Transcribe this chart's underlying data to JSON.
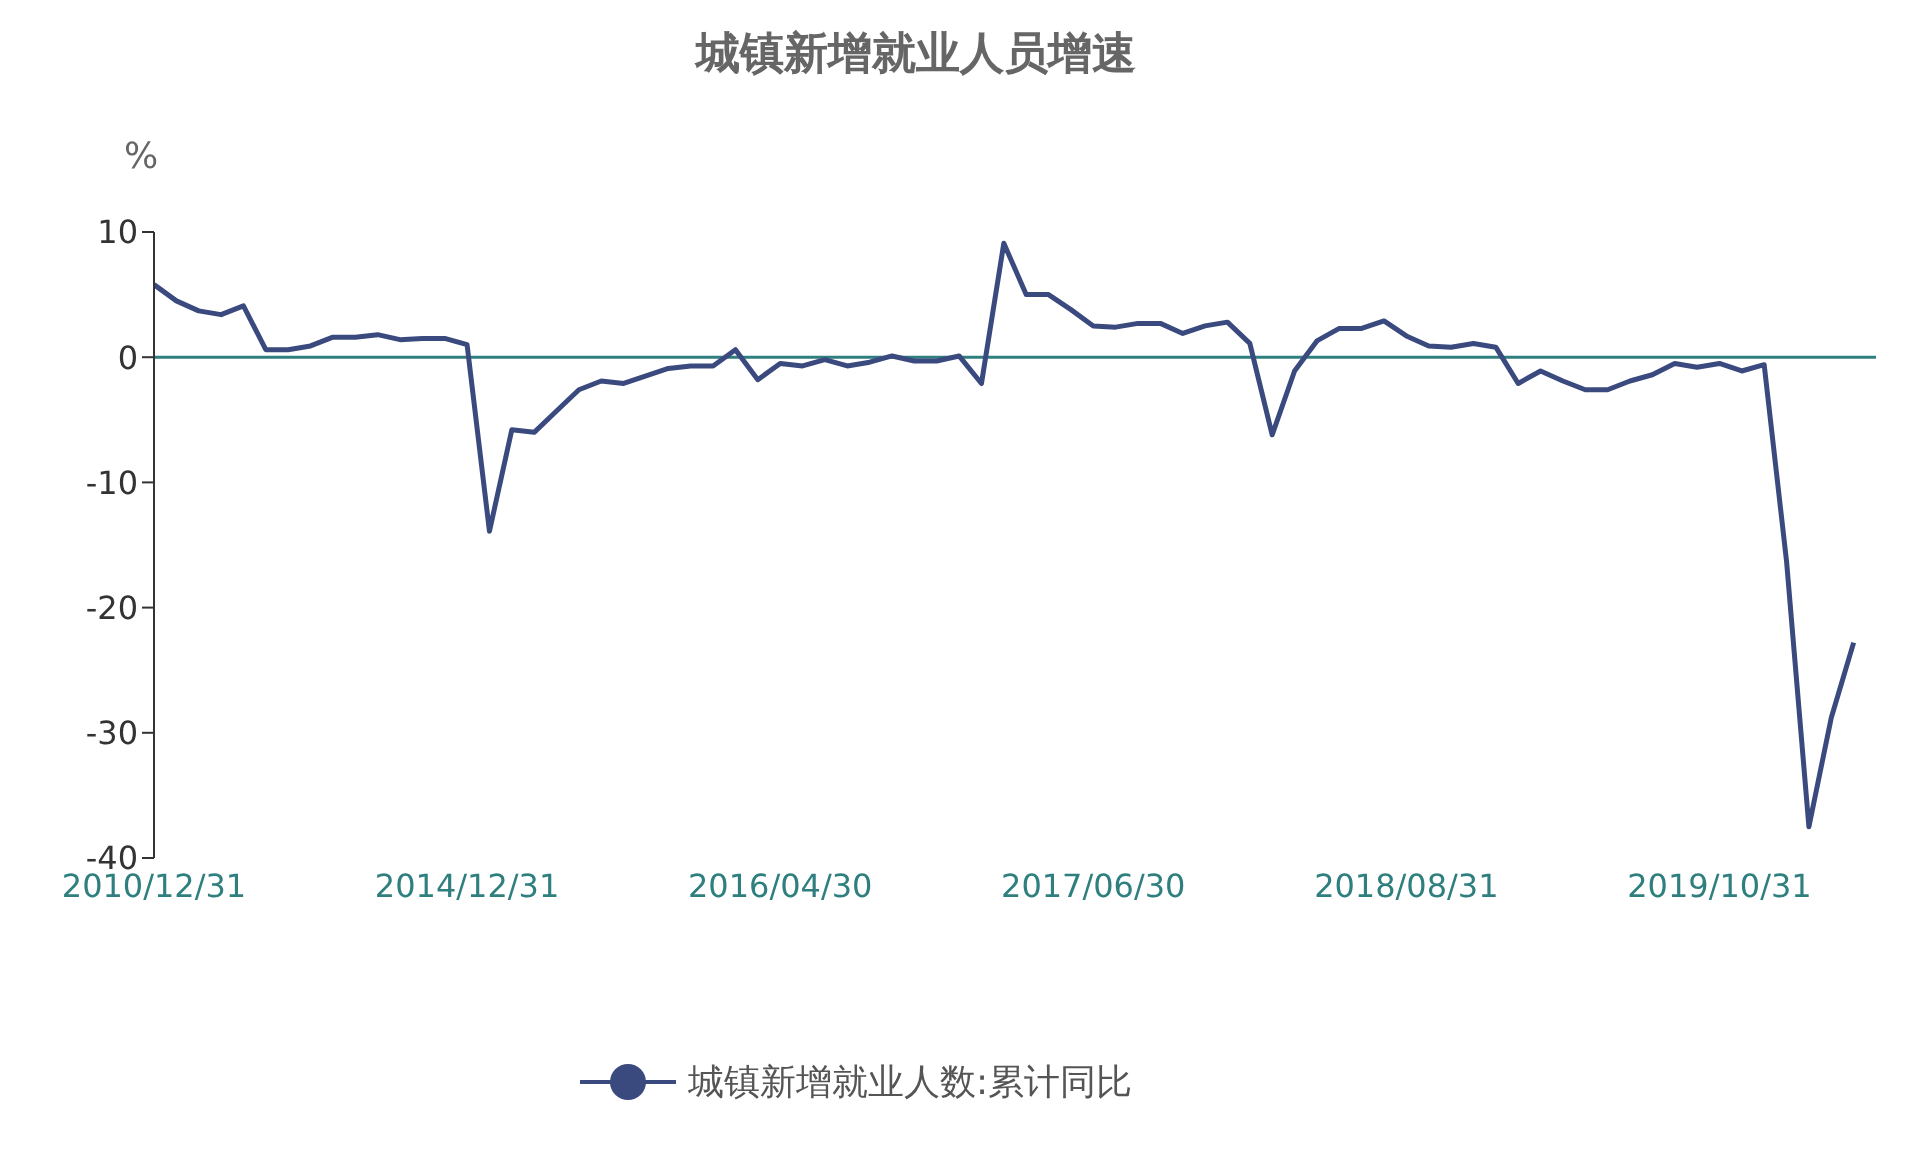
{
  "chart_data": {
    "type": "line",
    "title": "城镇新增就业人员增速",
    "ylabel": "%",
    "categories": [
      "2010/12/31",
      null,
      null,
      null,
      null,
      null,
      null,
      null,
      null,
      null,
      null,
      null,
      null,
      null,
      "2014/12/31",
      null,
      null,
      null,
      null,
      null,
      null,
      null,
      null,
      null,
      null,
      null,
      null,
      null,
      "2016/04/30",
      null,
      null,
      null,
      null,
      null,
      null,
      null,
      null,
      null,
      null,
      null,
      null,
      null,
      "2017/06/30",
      null,
      null,
      null,
      null,
      null,
      null,
      null,
      null,
      null,
      null,
      null,
      null,
      null,
      "2018/08/31",
      null,
      null,
      null,
      null,
      null,
      null,
      null,
      null,
      null,
      null,
      null,
      null,
      null,
      "2019/10/31",
      null,
      null,
      null,
      null,
      null,
      null,
      null
    ],
    "series": [
      {
        "name": "城镇新增就业人数:累计同比",
        "color": "#3b4a7e",
        "values": [
          5.8,
          4.5,
          3.7,
          3.4,
          4.1,
          0.6,
          0.6,
          0.9,
          1.6,
          1.6,
          1.8,
          1.4,
          1.5,
          1.5,
          1.0,
          -13.9,
          -5.8,
          -6.0,
          -4.3,
          -2.6,
          -1.9,
          -2.1,
          -1.5,
          -0.9,
          -0.7,
          -0.7,
          0.6,
          -1.8,
          -0.5,
          -0.7,
          -0.2,
          -0.7,
          -0.4,
          0.1,
          -0.3,
          -0.3,
          0.1,
          -2.1,
          9.1,
          5.0,
          5.0,
          3.8,
          2.5,
          2.4,
          2.7,
          2.7,
          1.9,
          2.5,
          2.8,
          1.1,
          -6.2,
          -1.1,
          1.3,
          2.3,
          2.3,
          2.9,
          1.7,
          0.9,
          0.8,
          1.1,
          0.8,
          -2.1,
          -1.1,
          -1.9,
          -2.6,
          -2.6,
          -1.9,
          -1.4,
          -0.5,
          -0.8,
          -0.5,
          -1.1,
          -0.6,
          -16.3,
          -37.5,
          -28.8,
          -22.8,
          null
        ]
      }
    ],
    "ylim": [
      -40,
      10
    ],
    "yticks": [
      -40,
      -30,
      -20,
      -10,
      0,
      10
    ],
    "ref_lines": [
      {
        "axis": "y",
        "value": 0,
        "color": "#2f7f7f"
      }
    ],
    "grid": false,
    "legend": "bottom",
    "marker": "none",
    "line_style": "solid"
  }
}
